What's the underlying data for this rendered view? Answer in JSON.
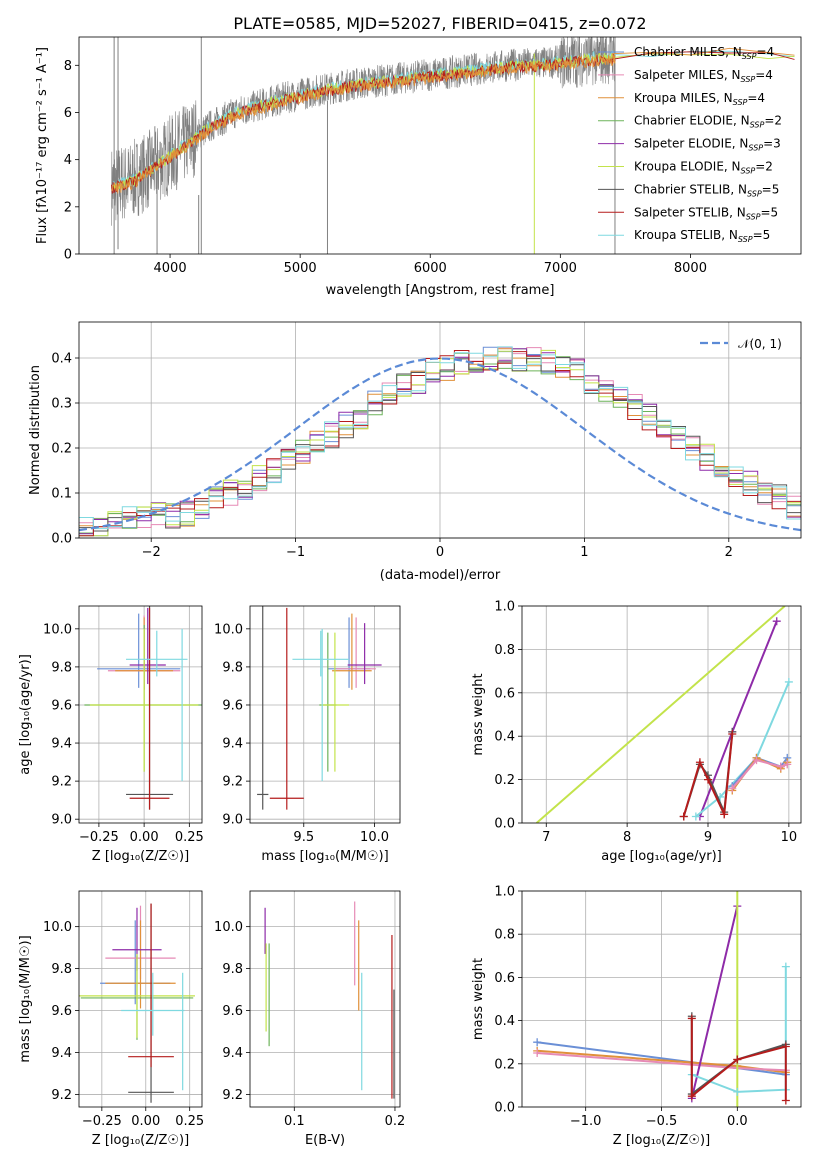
{
  "figure": {
    "title": "PLATE=0585, MJD=52027, FIBERID=0415, z=0.072"
  },
  "legend_entries": [
    {
      "label": "Chabrier MILES, N",
      "sub": "SSP",
      "suffix": "=4",
      "color": "#6a8fd6"
    },
    {
      "label": "Salpeter MILES, N",
      "sub": "SSP",
      "suffix": "=4",
      "color": "#e68ab5"
    },
    {
      "label": "Kroupa MILES, N",
      "sub": "SSP",
      "suffix": "=4",
      "color": "#e0903a"
    },
    {
      "label": "Chabrier ELODIE, N",
      "sub": "SSP",
      "suffix": "=2",
      "color": "#6db35a"
    },
    {
      "label": "Salpeter ELODIE, N",
      "sub": "SSP",
      "suffix": "=3",
      "color": "#8e2ba8"
    },
    {
      "label": "Kroupa ELODIE, N",
      "sub": "SSP",
      "suffix": "=2",
      "color": "#c3e34b"
    },
    {
      "label": "Chabrier STELIB, N",
      "sub": "SSP",
      "suffix": "=5",
      "color": "#555555"
    },
    {
      "label": "Salpeter STELIB, N",
      "sub": "SSP",
      "suffix": "=5",
      "color": "#b51c1c"
    },
    {
      "label": "Kroupa STELIB, N",
      "sub": "SSP",
      "suffix": "=5",
      "color": "#7fd9e0"
    }
  ],
  "chart_data": [
    {
      "id": "spectrum",
      "type": "line",
      "xlabel": "wavelength [Angstrom, rest frame]",
      "ylabel": "Flux [fλ10⁻¹⁷ erg cm⁻² s⁻¹ A⁻¹]",
      "xlim": [
        3300,
        8850
      ],
      "ylim": [
        0,
        9.2
      ],
      "xticks": [
        "4000",
        "5000",
        "6000",
        "7000",
        "8000"
      ],
      "yticks": [
        "0",
        "2",
        "4",
        "6",
        "8"
      ],
      "data_color": "#808080",
      "continuum_x": [
        3550,
        3700,
        3900,
        4100,
        4300,
        4500,
        4800,
        5100,
        5400,
        5700,
        6000,
        6300,
        6600,
        6900,
        7200,
        7400
      ],
      "continuum_y": [
        2.9,
        3.1,
        3.8,
        4.6,
        5.4,
        6.0,
        6.5,
        6.9,
        7.2,
        7.4,
        7.6,
        7.8,
        8.0,
        8.1,
        8.3,
        8.4
      ],
      "model_colors": [
        "#7fd9e0",
        "#c3e34b",
        "#b51c1c",
        "#e0903a"
      ],
      "extended_models_x": [
        7400,
        7700,
        8000,
        8300,
        8600,
        8800
      ],
      "extended_models_y": [
        8.4,
        8.5,
        8.5,
        8.6,
        8.4,
        8.3
      ]
    },
    {
      "id": "residual_histogram",
      "type": "line",
      "xlabel": "(data-model)/error",
      "ylabel": "Normed distribution",
      "xlim": [
        -2.5,
        2.5
      ],
      "ylim": [
        0,
        0.48
      ],
      "xticks": [
        "−2",
        "−1",
        "0",
        "1",
        "2"
      ],
      "yticks": [
        "0.0",
        "0.1",
        "0.2",
        "0.3",
        "0.4"
      ],
      "gaussian_label": "𝒩(0, 1)",
      "gaussian_color": "#5b8ad6",
      "bin_width": 0.1,
      "bin_start": -2.5,
      "base_hist": [
        0.018,
        0.025,
        0.03,
        0.04,
        0.045,
        0.05,
        0.05,
        0.055,
        0.07,
        0.085,
        0.1,
        0.11,
        0.135,
        0.15,
        0.17,
        0.19,
        0.21,
        0.23,
        0.25,
        0.27,
        0.3,
        0.32,
        0.34,
        0.35,
        0.37,
        0.38,
        0.39,
        0.39,
        0.4,
        0.4,
        0.4,
        0.4,
        0.39,
        0.38,
        0.37,
        0.35,
        0.33,
        0.31,
        0.29,
        0.27,
        0.24,
        0.22,
        0.2,
        0.18,
        0.16,
        0.14,
        0.12,
        0.1,
        0.09,
        0.07
      ]
    },
    {
      "id": "age_vs_Z",
      "type": "scatter",
      "xlabel": "Z [log₁₀(Z/Z☉)]",
      "ylabel": "age  [log₁₀(age/yr)]",
      "xlim": [
        -0.36,
        0.32
      ],
      "ylim": [
        8.98,
        10.12
      ],
      "xticks": [
        "−0.25",
        "0.00",
        "0.25"
      ],
      "xtick_values": [
        -0.25,
        0.0,
        0.25
      ],
      "yticks": [
        "9.0",
        "9.2",
        "9.4",
        "9.6",
        "9.8",
        "10.0"
      ],
      "ytick_values": [
        9.0,
        9.2,
        9.4,
        9.6,
        9.8,
        10.0
      ],
      "points": [
        {
          "x": -0.03,
          "y": 9.79,
          "xerr": 0.23,
          "yerr_lo": 0.1,
          "yerr_hi": 0.29,
          "color": "#6a8fd6"
        },
        {
          "x": 0.0,
          "y": 9.78,
          "xerr": 0.2,
          "yerr_lo": 0.1,
          "yerr_hi": 0.29,
          "color": "#e68ab5"
        },
        {
          "x": 0.0,
          "y": 9.78,
          "xerr": 0.16,
          "yerr_lo": 0.1,
          "yerr_hi": 0.28,
          "color": "#e0903a"
        },
        {
          "x": 0.0,
          "y": 9.6,
          "xerr": 0.33,
          "yerr_lo": 0.35,
          "yerr_hi": 0.42,
          "color": "#6db35a"
        },
        {
          "x": 0.02,
          "y": 9.81,
          "xerr": 0.1,
          "yerr_lo": 0.1,
          "yerr_hi": 0.3,
          "color": "#8e2ba8"
        },
        {
          "x": 0.0,
          "y": 9.6,
          "xerr": 0.3,
          "yerr_lo": 0.35,
          "yerr_hi": 0.4,
          "color": "#c3e34b"
        },
        {
          "x": 0.03,
          "y": 9.13,
          "xerr": 0.13,
          "yerr_lo": 0.08,
          "yerr_hi": 0.99,
          "color": "#555555"
        },
        {
          "x": 0.03,
          "y": 9.11,
          "xerr": 0.11,
          "yerr_lo": 0.06,
          "yerr_hi": 1.0,
          "color": "#b51c1c"
        },
        {
          "x": 0.07,
          "y": 9.84,
          "xerr": 0.17,
          "yerr_lo": 0.09,
          "yerr_hi": 0.15,
          "color": "#7fd9e0"
        },
        {
          "x": 0.21,
          "y": 9.55,
          "xerr": 0.0,
          "yerr_lo": 0.35,
          "yerr_hi": 0.45,
          "color": "#7fd9e0"
        }
      ]
    },
    {
      "id": "age_vs_mass",
      "type": "scatter",
      "xlabel": "mass [log₁₀(M/M☉)]",
      "xlim": [
        9.12,
        10.18
      ],
      "ylim": [
        8.98,
        10.12
      ],
      "xticks": [
        "9.5",
        "10.0"
      ],
      "xtick_values": [
        9.5,
        10.0
      ],
      "yticks": [
        "9.0",
        "9.2",
        "9.4",
        "9.6",
        "9.8",
        "10.0"
      ],
      "ytick_values": [
        9.0,
        9.2,
        9.4,
        9.6,
        9.8,
        10.0
      ],
      "points": [
        {
          "x": 9.82,
          "y": 9.79,
          "xerr": 0.15,
          "yerr_lo": 0.1,
          "yerr_hi": 0.27,
          "color": "#6a8fd6"
        },
        {
          "x": 9.87,
          "y": 9.79,
          "xerr": 0.14,
          "yerr_lo": 0.1,
          "yerr_hi": 0.27,
          "color": "#e68ab5"
        },
        {
          "x": 9.84,
          "y": 9.78,
          "xerr": 0.14,
          "yerr_lo": 0.1,
          "yerr_hi": 0.3,
          "color": "#e0903a"
        },
        {
          "x": 9.67,
          "y": 9.6,
          "xerr": 0.06,
          "yerr_lo": 0.35,
          "yerr_hi": 0.38,
          "color": "#6db35a"
        },
        {
          "x": 9.93,
          "y": 9.81,
          "xerr": 0.12,
          "yerr_lo": 0.1,
          "yerr_hi": 0.22,
          "color": "#8e2ba8"
        },
        {
          "x": 9.72,
          "y": 9.6,
          "xerr": 0.1,
          "yerr_lo": 0.35,
          "yerr_hi": 0.38,
          "color": "#c3e34b"
        },
        {
          "x": 9.21,
          "y": 9.13,
          "xerr": 0.04,
          "yerr_lo": 0.08,
          "yerr_hi": 0.99,
          "color": "#555555"
        },
        {
          "x": 9.38,
          "y": 9.11,
          "xerr": 0.12,
          "yerr_lo": 0.06,
          "yerr_hi": 1.0,
          "color": "#b51c1c"
        },
        {
          "x": 9.62,
          "y": 9.84,
          "xerr": 0.2,
          "yerr_lo": 0.09,
          "yerr_hi": 0.15,
          "color": "#7fd9e0"
        },
        {
          "x": 9.63,
          "y": 9.55,
          "xerr": 0.0,
          "yerr_lo": 0.35,
          "yerr_hi": 0.45,
          "color": "#7fd9e0"
        }
      ]
    },
    {
      "id": "mass_weight_vs_age",
      "type": "line",
      "xlabel": "age  [log₁₀(age/yr)]",
      "ylabel": "mass weight",
      "xlim": [
        6.7,
        10.15
      ],
      "ylim": [
        0,
        1.0
      ],
      "xticks": [
        "7",
        "8",
        "9",
        "10"
      ],
      "xtick_values": [
        7,
        8,
        9,
        10
      ],
      "yticks": [
        "0.0",
        "0.2",
        "0.4",
        "0.6",
        "0.8",
        "1.0"
      ],
      "ytick_values": [
        0.0,
        0.2,
        0.4,
        0.6,
        0.8,
        1.0
      ],
      "series": [
        {
          "color": "#c3e34b",
          "x": [
            6.88,
            9.95
          ],
          "y": [
            0.0,
            1.0
          ],
          "markers": false
        },
        {
          "color": "#8e2ba8",
          "x": [
            8.9,
            9.3,
            9.85
          ],
          "y": [
            0.03,
            0.42,
            0.93
          ],
          "markers": true
        },
        {
          "color": "#7fd9e0",
          "x": [
            8.85,
            9.15,
            9.6,
            10.0
          ],
          "y": [
            0.03,
            0.12,
            0.3,
            0.65
          ],
          "markers": true
        },
        {
          "color": "#6a8fd6",
          "x": [
            9.3,
            9.6,
            9.9,
            9.98
          ],
          "y": [
            0.17,
            0.3,
            0.26,
            0.3
          ],
          "markers": true
        },
        {
          "color": "#e0903a",
          "x": [
            9.3,
            9.6,
            9.9,
            9.98
          ],
          "y": [
            0.15,
            0.3,
            0.25,
            0.28
          ],
          "markers": true
        },
        {
          "color": "#e68ab5",
          "x": [
            9.3,
            9.6,
            9.9,
            9.98
          ],
          "y": [
            0.16,
            0.29,
            0.26,
            0.27
          ],
          "markers": true
        },
        {
          "color": "#555555",
          "x": [
            8.7,
            8.9,
            9.0,
            9.2,
            9.3
          ],
          "y": [
            0.03,
            0.27,
            0.22,
            0.05,
            0.42
          ],
          "markers": true
        },
        {
          "color": "#b51c1c",
          "x": [
            8.7,
            8.9,
            9.0,
            9.2,
            9.3
          ],
          "y": [
            0.03,
            0.28,
            0.2,
            0.04,
            0.41
          ],
          "markers": true
        }
      ]
    },
    {
      "id": "mass_vs_Z",
      "type": "scatter",
      "xlabel": "Z [log₁₀(Z/Z☉)]",
      "ylabel": "mass [log₁₀(M/M☉)]",
      "xlim": [
        -0.38,
        0.32
      ],
      "ylim": [
        9.14,
        10.17
      ],
      "xticks": [
        "−0.25",
        "0.00",
        "0.25"
      ],
      "xtick_values": [
        -0.25,
        0.0,
        0.25
      ],
      "yticks": [
        "9.2",
        "9.4",
        "9.6",
        "9.8",
        "10.0"
      ],
      "ytick_values": [
        9.2,
        9.4,
        9.6,
        9.8,
        10.0
      ],
      "points": [
        {
          "x": -0.06,
          "y": 9.73,
          "xerr": 0.2,
          "yerr_lo": 0.1,
          "yerr_hi": 0.3,
          "color": "#6a8fd6"
        },
        {
          "x": -0.03,
          "y": 9.85,
          "xerr": 0.2,
          "yerr_lo": 0.1,
          "yerr_hi": 0.25,
          "color": "#e68ab5"
        },
        {
          "x": -0.03,
          "y": 9.73,
          "xerr": 0.2,
          "yerr_lo": 0.12,
          "yerr_hi": 0.3,
          "color": "#e0903a"
        },
        {
          "x": -0.05,
          "y": 9.66,
          "xerr": 0.32,
          "yerr_lo": 0.2,
          "yerr_hi": 0.2,
          "color": "#6db35a"
        },
        {
          "x": -0.05,
          "y": 9.89,
          "xerr": 0.14,
          "yerr_lo": 0.1,
          "yerr_hi": 0.2,
          "color": "#8e2ba8"
        },
        {
          "x": -0.05,
          "y": 9.67,
          "xerr": 0.33,
          "yerr_lo": 0.2,
          "yerr_hi": 0.2,
          "color": "#c3e34b"
        },
        {
          "x": 0.03,
          "y": 9.21,
          "xerr": 0.13,
          "yerr_lo": 0.05,
          "yerr_hi": 0.9,
          "color": "#555555"
        },
        {
          "x": 0.03,
          "y": 9.38,
          "xerr": 0.13,
          "yerr_lo": 0.05,
          "yerr_hi": 0.73,
          "color": "#b51c1c"
        },
        {
          "x": 0.04,
          "y": 9.6,
          "xerr": 0.18,
          "yerr_lo": 0.12,
          "yerr_hi": 0.18,
          "color": "#7fd9e0"
        },
        {
          "x": 0.21,
          "y": 9.5,
          "xerr": 0.0,
          "yerr_lo": 0.28,
          "yerr_hi": 0.28,
          "color": "#7fd9e0"
        }
      ]
    },
    {
      "id": "mass_vs_EBV",
      "type": "scatter",
      "xlabel": "E(B-V)",
      "xlim": [
        0.056,
        0.205
      ],
      "ylim": [
        9.14,
        10.17
      ],
      "xticks": [
        "0.1",
        "0.2"
      ],
      "xtick_values": [
        0.1,
        0.2
      ],
      "yticks": [
        "9.2",
        "9.4",
        "9.6",
        "9.8",
        "10.0"
      ],
      "ytick_values": [
        9.2,
        9.4,
        9.6,
        9.8,
        10.0
      ],
      "points": [
        {
          "x": 0.071,
          "y": 9.95,
          "xerr": 0.0,
          "yerr_lo": 0.08,
          "yerr_hi": 0.14,
          "color": "#8e2ba8"
        },
        {
          "x": 0.072,
          "y": 9.72,
          "xerr": 0.0,
          "yerr_lo": 0.22,
          "yerr_hi": 0.2,
          "color": "#c3e34b"
        },
        {
          "x": 0.075,
          "y": 9.68,
          "xerr": 0.0,
          "yerr_lo": 0.25,
          "yerr_hi": 0.24,
          "color": "#6db35a"
        },
        {
          "x": 0.16,
          "y": 9.92,
          "xerr": 0.0,
          "yerr_lo": 0.2,
          "yerr_hi": 0.2,
          "color": "#e68ab5"
        },
        {
          "x": 0.164,
          "y": 9.8,
          "xerr": 0.0,
          "yerr_lo": 0.2,
          "yerr_hi": 0.23,
          "color": "#e0903a"
        },
        {
          "x": 0.167,
          "y": 9.5,
          "xerr": 0.0,
          "yerr_lo": 0.28,
          "yerr_hi": 0.28,
          "color": "#7fd9e0"
        },
        {
          "x": 0.197,
          "y": 9.55,
          "xerr": 0.0,
          "yerr_lo": 0.37,
          "yerr_hi": 0.41,
          "color": "#b51c1c"
        },
        {
          "x": 0.199,
          "y": 9.45,
          "xerr": 0.0,
          "yerr_lo": 0.27,
          "yerr_hi": 0.25,
          "color": "#555555"
        }
      ]
    },
    {
      "id": "mass_weight_vs_Z",
      "type": "line",
      "xlabel": "Z [log₁₀(Z/Z☉)]",
      "ylabel": "mass weight",
      "xlim": [
        -1.42,
        0.42
      ],
      "ylim": [
        0,
        1.0
      ],
      "xticks": [
        "−1.0",
        "−0.5",
        "0.0"
      ],
      "xtick_values": [
        -1.0,
        -0.5,
        0.0
      ],
      "yticks": [
        "0.0",
        "0.2",
        "0.4",
        "0.6",
        "0.8",
        "1.0"
      ],
      "ytick_values": [
        0.0,
        0.2,
        0.4,
        0.6,
        0.8,
        1.0
      ],
      "series": [
        {
          "color": "#6a8fd6",
          "x": [
            -1.32,
            0.0,
            0.32
          ],
          "y": [
            0.3,
            0.18,
            0.15
          ],
          "markers": true
        },
        {
          "color": "#e0903a",
          "x": [
            -1.32,
            0.0,
            0.32
          ],
          "y": [
            0.26,
            0.19,
            0.16
          ],
          "markers": true
        },
        {
          "color": "#e68ab5",
          "x": [
            -1.32,
            0.0,
            0.32
          ],
          "y": [
            0.25,
            0.18,
            0.17
          ],
          "markers": true
        },
        {
          "color": "#8e2ba8",
          "x": [
            -0.3,
            0.0
          ],
          "y": [
            0.04,
            0.93
          ],
          "markers": true
        },
        {
          "color": "#c3e34b",
          "x": [
            0.0,
            0.0
          ],
          "y": [
            0.0,
            1.0
          ],
          "markers": false
        },
        {
          "color": "#7fd9e0",
          "x": [
            -0.3,
            0.0,
            0.32,
            0.32
          ],
          "y": [
            0.15,
            0.07,
            0.08,
            0.65
          ],
          "markers": true
        },
        {
          "color": "#555555",
          "x": [
            -0.3,
            -0.3,
            0.0,
            0.32
          ],
          "y": [
            0.42,
            0.06,
            0.22,
            0.29
          ],
          "markers": true
        },
        {
          "color": "#b51c1c",
          "x": [
            -0.3,
            -0.3,
            0.0,
            0.32,
            0.32
          ],
          "y": [
            0.41,
            0.05,
            0.22,
            0.28,
            0.03
          ],
          "markers": true
        }
      ]
    }
  ]
}
